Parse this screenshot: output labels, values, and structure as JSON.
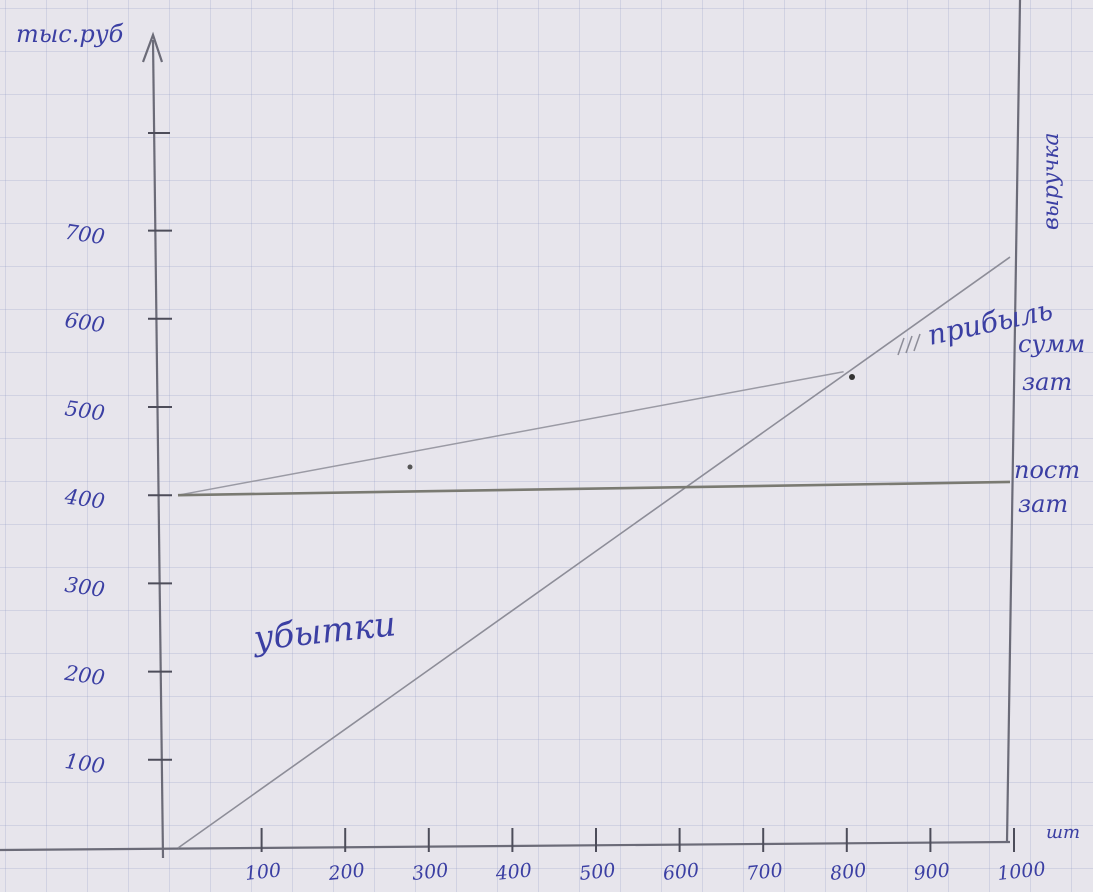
{
  "colors": {
    "ink": "#3b3fa3",
    "pencil": "#8d8d98",
    "axis": "#6b6b78",
    "fixed_costs_line": "#7a7a72"
  },
  "chart_data": {
    "type": "line",
    "ylabel": "тыс.руб",
    "xlabel": "шт",
    "x_ticks": [
      100,
      200,
      300,
      400,
      500,
      600,
      700,
      800,
      900,
      1000
    ],
    "y_ticks": [
      100,
      200,
      300,
      400,
      500,
      600,
      700
    ],
    "x_tick_labels": [
      "100",
      "200",
      "300",
      "400",
      "500",
      "600",
      "700",
      "800",
      "900",
      "1000"
    ],
    "y_tick_labels": [
      "100",
      "200",
      "300",
      "400",
      "500",
      "600",
      "700"
    ],
    "xlim": [
      0,
      1000
    ],
    "ylim": [
      0,
      850
    ],
    "grid": true,
    "series": [
      {
        "name": "выручка",
        "x": [
          0,
          1000
        ],
        "y": [
          0,
          670
        ]
      },
      {
        "name": "сумм зат",
        "x": [
          0,
          800
        ],
        "y": [
          400,
          540
        ]
      },
      {
        "name": "пост зат",
        "x": [
          0,
          1000
        ],
        "y": [
          400,
          415
        ]
      }
    ],
    "annotations": {
      "loss_zone": "убытки",
      "profit_zone": "прибыль",
      "revenue_label": "выручка",
      "total_costs_label_1": "сумм",
      "total_costs_label_2": "зат",
      "fixed_costs_label_1": "пост",
      "fixed_costs_label_2": "зат"
    }
  }
}
